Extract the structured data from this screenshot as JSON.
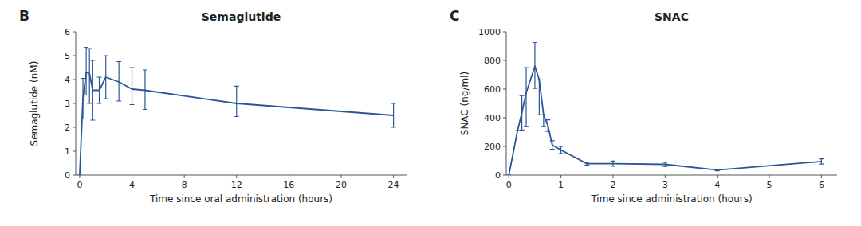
{
  "chart_data": [
    {
      "type": "line",
      "title": "Semaglutide",
      "xlabel": "Time since oral administration (hours)",
      "ylabel": "Semaglutide (nM)",
      "annotations": [
        "B"
      ],
      "x": [
        0,
        0.25,
        0.5,
        0.75,
        1.0,
        1.5,
        2.0,
        3.0,
        4.0,
        5.0,
        12.0,
        24.0
      ],
      "values": [
        0,
        3.2,
        4.3,
        4.25,
        3.55,
        3.55,
        4.1,
        3.9,
        3.6,
        3.55,
        3.0,
        2.5
      ],
      "error_lo": [
        0,
        0.85,
        0.95,
        1.25,
        1.25,
        0.55,
        0.9,
        0.8,
        0.65,
        0.8,
        0.55,
        0.5
      ],
      "error_hi": [
        0,
        0.85,
        1.05,
        1.05,
        1.25,
        0.55,
        0.9,
        0.85,
        0.9,
        0.85,
        0.72,
        0.5
      ],
      "xlim": [
        -0.3,
        25
      ],
      "ylim": [
        0,
        6
      ],
      "xticks": [
        0,
        4,
        8,
        12,
        16,
        20,
        24
      ],
      "yticks": [
        0,
        1,
        2,
        3,
        4,
        5,
        6
      ],
      "color": "#2B5797",
      "grid": false
    },
    {
      "type": "line",
      "title": "SNAC",
      "xlabel": "Time since administration (hours)",
      "ylabel": "SNAC (ng/ml)",
      "annotations": [
        "C"
      ],
      "x": [
        0,
        0.167,
        0.25,
        0.333,
        0.5,
        0.583,
        0.667,
        0.75,
        0.833,
        1.0,
        1.5,
        2.0,
        3.0,
        4.0,
        6.0
      ],
      "values": [
        0,
        310,
        435,
        575,
        760,
        665,
        420,
        345,
        210,
        175,
        80,
        80,
        75,
        35,
        95
      ],
      "error_lo": [
        0,
        0,
        120,
        235,
        155,
        245,
        80,
        40,
        30,
        25,
        10,
        18,
        15,
        5,
        18
      ],
      "error_hi": [
        0,
        0,
        120,
        175,
        165,
        0,
        0,
        40,
        30,
        25,
        10,
        18,
        15,
        5,
        18
      ],
      "xlim": [
        -0.05,
        6.3
      ],
      "ylim": [
        0,
        1000
      ],
      "xticks": [
        0,
        1,
        2,
        3,
        4,
        5,
        6
      ],
      "yticks": [
        0,
        200,
        400,
        600,
        800,
        1000
      ],
      "color": "#2B5797",
      "grid": false
    }
  ]
}
